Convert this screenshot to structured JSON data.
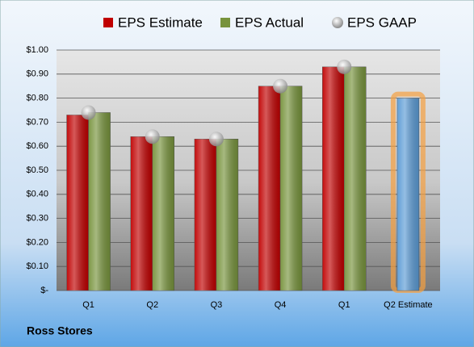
{
  "chart_data": {
    "type": "bar",
    "title": "Ross Stores",
    "categories": [
      "Q1",
      "Q2",
      "Q3",
      "Q4",
      "Q1",
      "Q2 Estimate"
    ],
    "series": [
      {
        "name": "EPS Estimate",
        "color": "#c00000",
        "values": [
          0.73,
          0.64,
          0.63,
          0.85,
          0.93,
          0.8
        ],
        "colors": [
          "#c00000",
          "#c00000",
          "#c00000",
          "#c00000",
          "#c00000",
          "#5b9bd5"
        ]
      },
      {
        "name": "EPS Actual",
        "color": "#77933c",
        "values": [
          0.74,
          0.64,
          0.63,
          0.85,
          0.93,
          null
        ]
      },
      {
        "name": "EPS GAAP",
        "color": "#a6a6a6",
        "marker": "circle",
        "values": [
          0.74,
          0.64,
          0.63,
          0.85,
          0.93,
          null
        ]
      }
    ],
    "ylim": [
      0,
      1
    ],
    "yticks": [
      {
        "value": 0,
        "label": "$-"
      },
      {
        "value": 0.1,
        "label": "$0.10"
      },
      {
        "value": 0.2,
        "label": "$0.20"
      },
      {
        "value": 0.3,
        "label": "$0.30"
      },
      {
        "value": 0.4,
        "label": "$0.40"
      },
      {
        "value": 0.5,
        "label": "$0.50"
      },
      {
        "value": 0.6,
        "label": "$0.60"
      },
      {
        "value": 0.7,
        "label": "$0.70"
      },
      {
        "value": 0.8,
        "label": "$0.80"
      },
      {
        "value": 0.9,
        "label": "$0.90"
      },
      {
        "value": 1,
        "label": "$1.00"
      }
    ],
    "grid": true,
    "legend": "top"
  }
}
